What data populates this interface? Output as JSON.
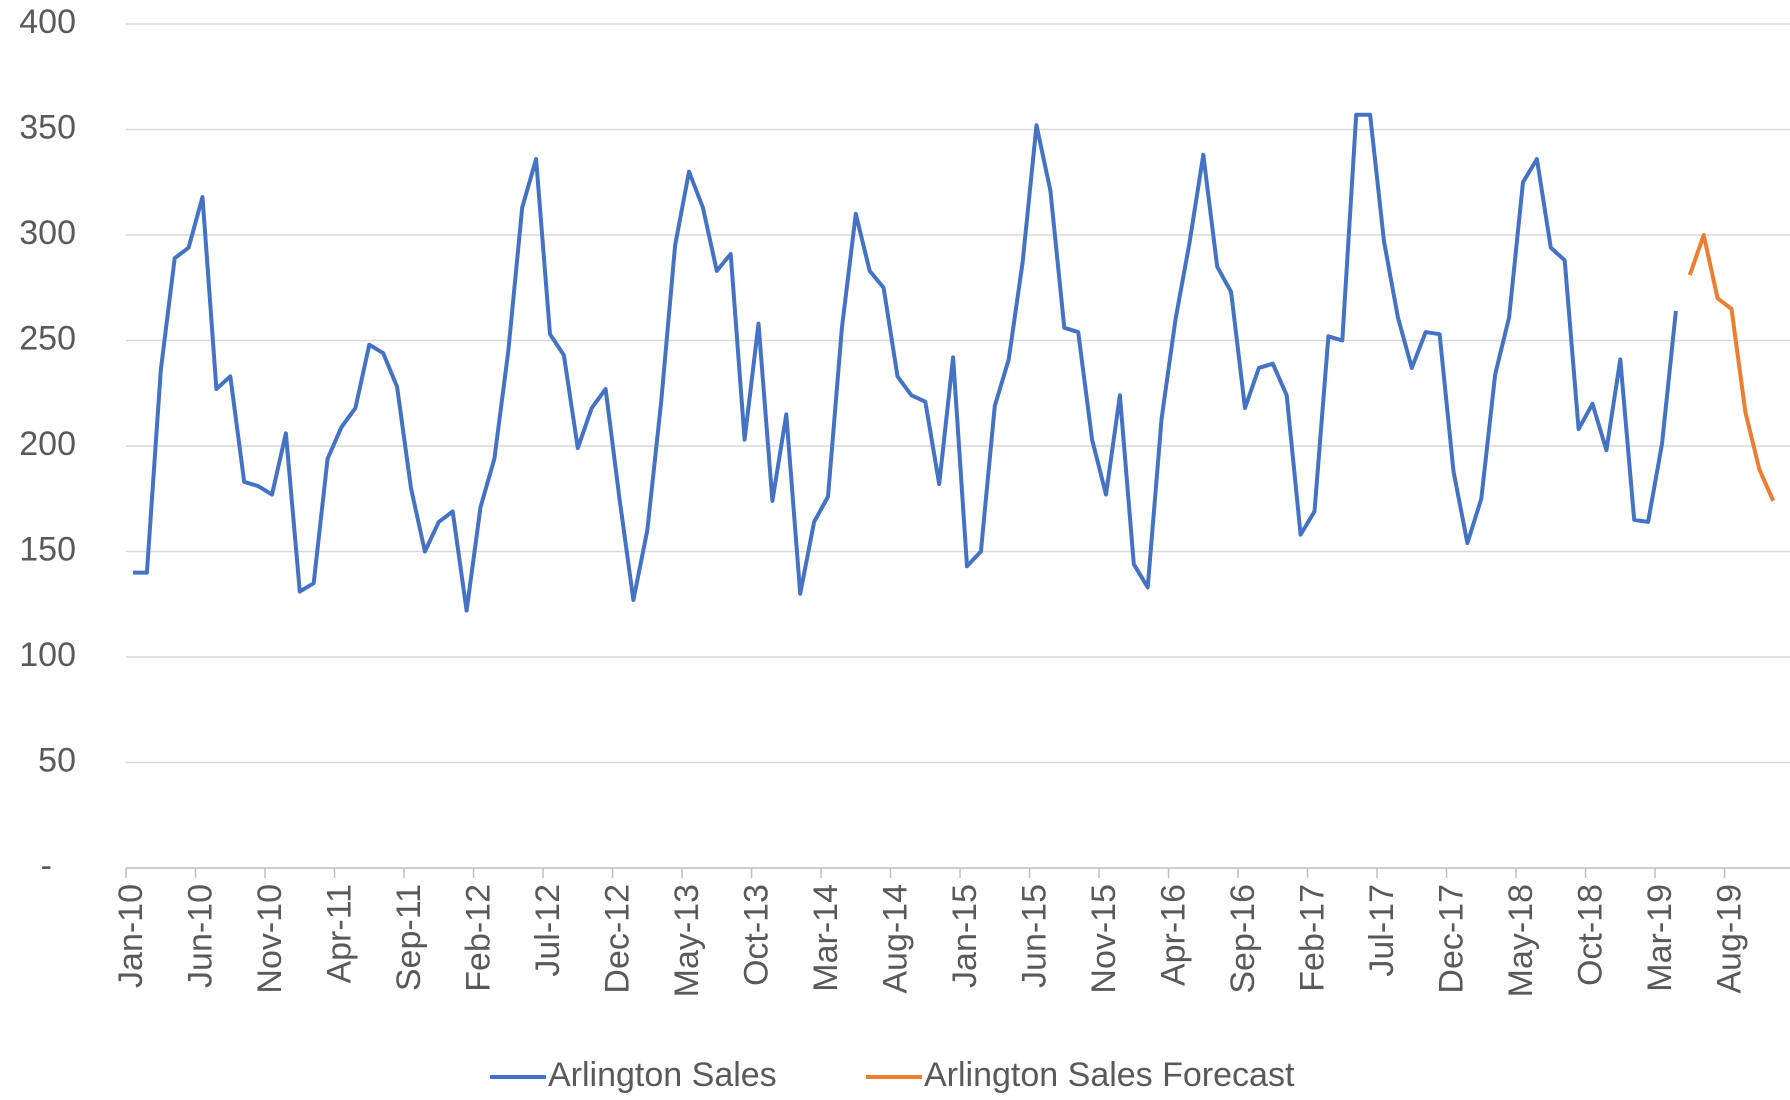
{
  "chart_data": {
    "type": "line",
    "categories": [
      "Jan-10",
      null,
      null,
      null,
      null,
      "Jun-10",
      null,
      null,
      null,
      null,
      "Nov-10",
      null,
      null,
      null,
      null,
      "Apr-11",
      null,
      null,
      null,
      null,
      "Sep-11",
      null,
      null,
      null,
      null,
      "Feb-12",
      null,
      null,
      null,
      null,
      "Jul-12",
      null,
      null,
      null,
      null,
      "Dec-12",
      null,
      null,
      null,
      null,
      "May-13",
      null,
      null,
      null,
      null,
      "Oct-13",
      null,
      null,
      null,
      null,
      "Mar-14",
      null,
      null,
      null,
      null,
      "Aug-14",
      null,
      null,
      null,
      null,
      "Jan-15",
      null,
      null,
      null,
      null,
      "Jun-15",
      null,
      null,
      null,
      null,
      "Nov-15",
      null,
      null,
      null,
      null,
      "Apr-16",
      null,
      null,
      null,
      null,
      "Sep-16",
      null,
      null,
      null,
      null,
      "Feb-17",
      null,
      null,
      null,
      null,
      "Jul-17",
      null,
      null,
      null,
      null,
      "Dec-17",
      null,
      null,
      null,
      null,
      "May-18",
      null,
      null,
      null,
      null,
      "Oct-18",
      null,
      null,
      null,
      null,
      "Mar-19",
      null,
      null,
      null,
      null,
      "Aug-19",
      null,
      null,
      null
    ],
    "series": [
      {
        "name": "Arlington Sales",
        "color": "#4472c4",
        "values": [
          140,
          140,
          236,
          289,
          294,
          318,
          227,
          233,
          183,
          181,
          177,
          206,
          131,
          135,
          194,
          209,
          218,
          248,
          244,
          228,
          180,
          150,
          164,
          169,
          122,
          171,
          194,
          245,
          313,
          336,
          253,
          243,
          199,
          218,
          227,
          175,
          127,
          160,
          221,
          295,
          330,
          313,
          283,
          291,
          203,
          258,
          174,
          215,
          130,
          164,
          176,
          256,
          310,
          283,
          275,
          233,
          224,
          221,
          182,
          242,
          143,
          150,
          219,
          241,
          287,
          352,
          321,
          256,
          254,
          203,
          177,
          224,
          144,
          133,
          213,
          260,
          296,
          338,
          285,
          273,
          218,
          237,
          239,
          224,
          158,
          169,
          252,
          250,
          357,
          357,
          297,
          261,
          237,
          254,
          253,
          188,
          154,
          175,
          234,
          261,
          325,
          336,
          294,
          288,
          208,
          220,
          198,
          241,
          165,
          164,
          201,
          264,
          null,
          null,
          null,
          null,
          null,
          null,
          null
        ]
      },
      {
        "name": "Arlington Sales Forecast",
        "color": "#ed7d31",
        "values": [
          null,
          null,
          null,
          null,
          null,
          null,
          null,
          null,
          null,
          null,
          null,
          null,
          null,
          null,
          null,
          null,
          null,
          null,
          null,
          null,
          null,
          null,
          null,
          null,
          null,
          null,
          null,
          null,
          null,
          null,
          null,
          null,
          null,
          null,
          null,
          null,
          null,
          null,
          null,
          null,
          null,
          null,
          null,
          null,
          null,
          null,
          null,
          null,
          null,
          null,
          null,
          null,
          null,
          null,
          null,
          null,
          null,
          null,
          null,
          null,
          null,
          null,
          null,
          null,
          null,
          null,
          null,
          null,
          null,
          null,
          null,
          null,
          null,
          null,
          null,
          null,
          null,
          null,
          null,
          null,
          null,
          null,
          null,
          null,
          null,
          null,
          null,
          null,
          null,
          null,
          null,
          null,
          null,
          null,
          null,
          null,
          null,
          null,
          null,
          null,
          null,
          null,
          null,
          null,
          null,
          null,
          null,
          null,
          null,
          null,
          null,
          null,
          281,
          300,
          270,
          265,
          216,
          189,
          174
        ]
      }
    ],
    "ylim": [
      0,
      400
    ],
    "yticks": [
      {
        "value": 0,
        "label": "-"
      },
      50,
      100,
      150,
      200,
      250,
      300,
      350,
      400
    ],
    "grid": true,
    "legend": "bottom"
  }
}
